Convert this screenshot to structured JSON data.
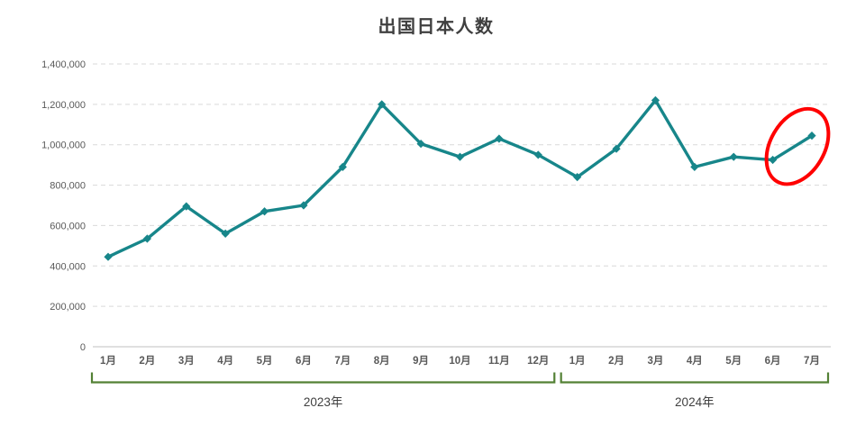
{
  "page": {
    "background_color": "#FFFFFF"
  },
  "chart_data": {
    "type": "line",
    "title": "出国日本人数",
    "categories": [
      "1月",
      "2月",
      "3月",
      "4月",
      "5月",
      "6月",
      "7月",
      "8月",
      "9月",
      "10月",
      "11月",
      "12月",
      "1月",
      "2月",
      "3月",
      "4月",
      "5月",
      "6月",
      "7月"
    ],
    "series": [
      {
        "name": "出国日本人数",
        "values": [
          445000,
          535000,
          695000,
          560000,
          670000,
          700000,
          890000,
          1200000,
          1005000,
          940000,
          1030000,
          950000,
          840000,
          980000,
          1220000,
          890000,
          940000,
          925000,
          1045000
        ]
      }
    ],
    "xlabel": "",
    "ylabel": "",
    "ylim": [
      0,
      1400000
    ],
    "y_ticks": [
      0,
      200000,
      400000,
      600000,
      800000,
      1000000,
      1200000,
      1400000
    ],
    "grid": "horizontal-dashed",
    "legend": "none",
    "line_color": "#17868A",
    "marker": "diamond",
    "gridline_color": "#D9D9D9",
    "axis_line_color": "#C0C0C0",
    "tick_label_color": "#595959",
    "title_color": "#3F3F3F",
    "year_groups": [
      {
        "label": "2023年",
        "from": 0,
        "to": 11
      },
      {
        "label": "2024年",
        "from": 12,
        "to": 18
      }
    ],
    "bracket_color": "#538135",
    "annotation": {
      "shape": "ellipse",
      "color": "#FF0000",
      "target_index": 18
    }
  }
}
